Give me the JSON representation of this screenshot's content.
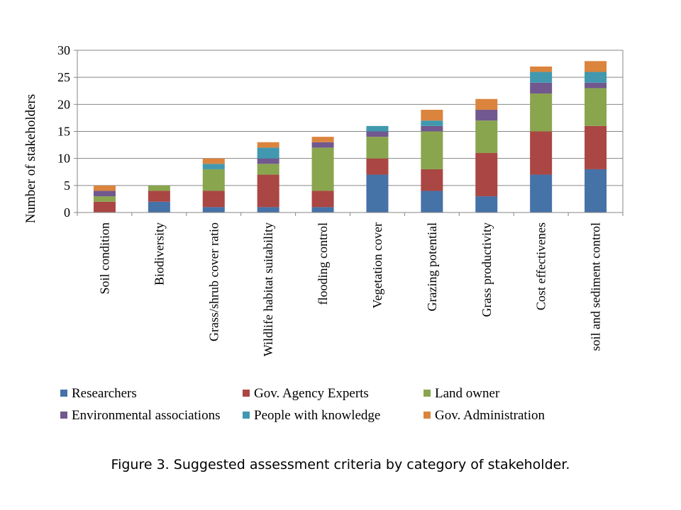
{
  "caption": "Figure 3. Suggested assessment criteria by category of stakeholder.",
  "chart_data": {
    "type": "bar",
    "stacked": true,
    "title": "",
    "xlabel": "",
    "ylabel": "Number of stakeholders",
    "ylim": [
      0,
      30
    ],
    "yticks": [
      0,
      5,
      10,
      15,
      20,
      25,
      30
    ],
    "grid": true,
    "legend_position": "bottom",
    "categories": [
      "Soil condition",
      "Biodiversity",
      "Grass/shrub cover ratio",
      "Wildlife habitat suitability",
      "flooding control",
      "Vegetation cover",
      "Grazing potential",
      "Grass productivity",
      "Cost effectivenes",
      "soil and sediment control"
    ],
    "series": [
      {
        "name": "Researchers",
        "color": "#4572A7",
        "values": [
          0,
          2,
          1,
          1,
          1,
          7,
          4,
          3,
          7,
          8
        ]
      },
      {
        "name": "Gov. Agency Experts",
        "color": "#AA4643",
        "values": [
          2,
          2,
          3,
          6,
          3,
          3,
          4,
          8,
          8,
          8
        ]
      },
      {
        "name": "Land owner",
        "color": "#89A54E",
        "values": [
          1,
          1,
          4,
          2,
          8,
          4,
          7,
          6,
          7,
          7
        ]
      },
      {
        "name": "Environmental associations",
        "color": "#71588F",
        "values": [
          1,
          0,
          0,
          1,
          1,
          1,
          1,
          2,
          2,
          1
        ]
      },
      {
        "name": "People with knowledge",
        "color": "#4198AF",
        "values": [
          0,
          0,
          1,
          2,
          0,
          1,
          1,
          0,
          2,
          2
        ]
      },
      {
        "name": "Gov. Administration",
        "color": "#DB843D",
        "values": [
          1,
          0,
          1,
          1,
          1,
          0,
          2,
          2,
          1,
          2
        ]
      }
    ]
  }
}
